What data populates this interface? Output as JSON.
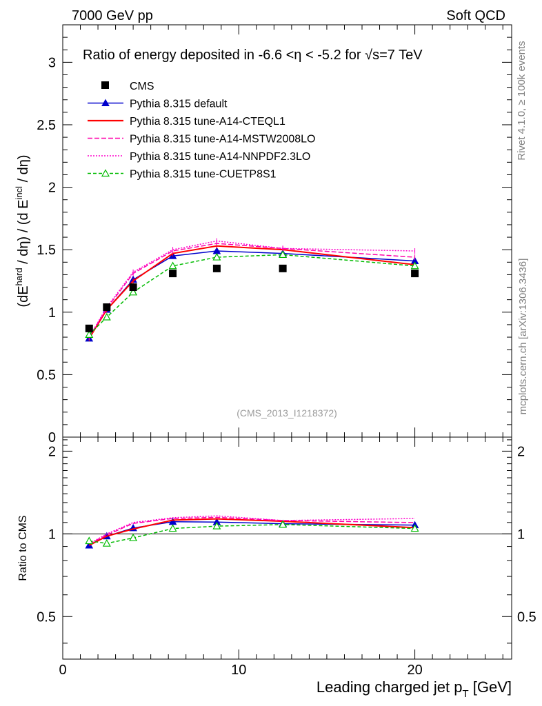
{
  "header": {
    "left": "7000 GeV pp",
    "right": "Soft QCD"
  },
  "side_labels": {
    "rivet": "Rivet 4.1.0, ≥ 100k events",
    "mcplots": "mcplots.cern.ch [arXiv:1306.3436]"
  },
  "chart_data": {
    "type": "line",
    "title": "Ratio of energy deposited in -6.6 <η < -5.2 for √s=7 TeV",
    "watermark": "(CMS_2013_I1218372)",
    "xlabel": {
      "main": "Leading charged jet p",
      "sub": "T",
      "unit": " [GeV]"
    },
    "ylabel": {
      "p1": "(dE",
      "sup1": "hard",
      "p2": " / dη) / (d E",
      "sup2": "incl",
      "p3": " / dη)"
    },
    "ratio_ylabel": "Ratio to CMS",
    "xlim": [
      0,
      25.5
    ],
    "ylim": [
      0,
      3.3
    ],
    "ratio_ylim": [
      0.35,
      2.25
    ],
    "x_ticks": [
      0,
      10,
      20
    ],
    "x_tick_labels": [
      "0",
      "10",
      "20"
    ],
    "y_ticks": [
      0,
      0.5,
      1,
      1.5,
      2,
      2.5,
      3
    ],
    "y_tick_labels": [
      "0",
      "0.5",
      "1",
      "1.5",
      "2",
      "2.5",
      "3"
    ],
    "ratio_y_ticks": [
      0.5,
      1,
      2
    ],
    "ratio_y_tick_labels": [
      "0.5",
      "1",
      "2"
    ],
    "x": [
      1.5,
      2.5,
      4,
      6.25,
      8.75,
      12.5,
      20
    ],
    "data": {
      "name": "CMS",
      "values": [
        0.87,
        1.04,
        1.2,
        1.31,
        1.35,
        1.35,
        1.31
      ]
    },
    "series": [
      {
        "name": "Pythia 8.315 default",
        "color": "#0000cc",
        "dash": "",
        "marker": "triangle-filled",
        "values": [
          0.79,
          1.02,
          1.26,
          1.45,
          1.49,
          1.47,
          1.41
        ]
      },
      {
        "name": "Pythia 8.315 tune-A14-CTEQL1",
        "color": "#ff0000",
        "dash": "",
        "marker": "none",
        "values": [
          0.79,
          1.02,
          1.25,
          1.47,
          1.53,
          1.5,
          1.38
        ]
      },
      {
        "name": "Pythia 8.315 tune-A14-MSTW2008LO",
        "color": "#ff00aa",
        "dash": "7,3",
        "marker": "none",
        "values": [
          0.8,
          1.03,
          1.31,
          1.49,
          1.55,
          1.51,
          1.44
        ]
      },
      {
        "name": "Pythia 8.315 tune-A14-NNPDF2.3LO",
        "color": "#ff00cc",
        "dash": "2,2",
        "marker": "none",
        "values": [
          0.8,
          1.04,
          1.32,
          1.5,
          1.57,
          1.51,
          1.49
        ]
      },
      {
        "name": "Pythia 8.315 tune-CUETP8S1",
        "color": "#00bb00",
        "dash": "5,3",
        "marker": "triangle-open",
        "values": [
          0.82,
          0.96,
          1.16,
          1.37,
          1.44,
          1.46,
          1.37
        ]
      }
    ]
  }
}
